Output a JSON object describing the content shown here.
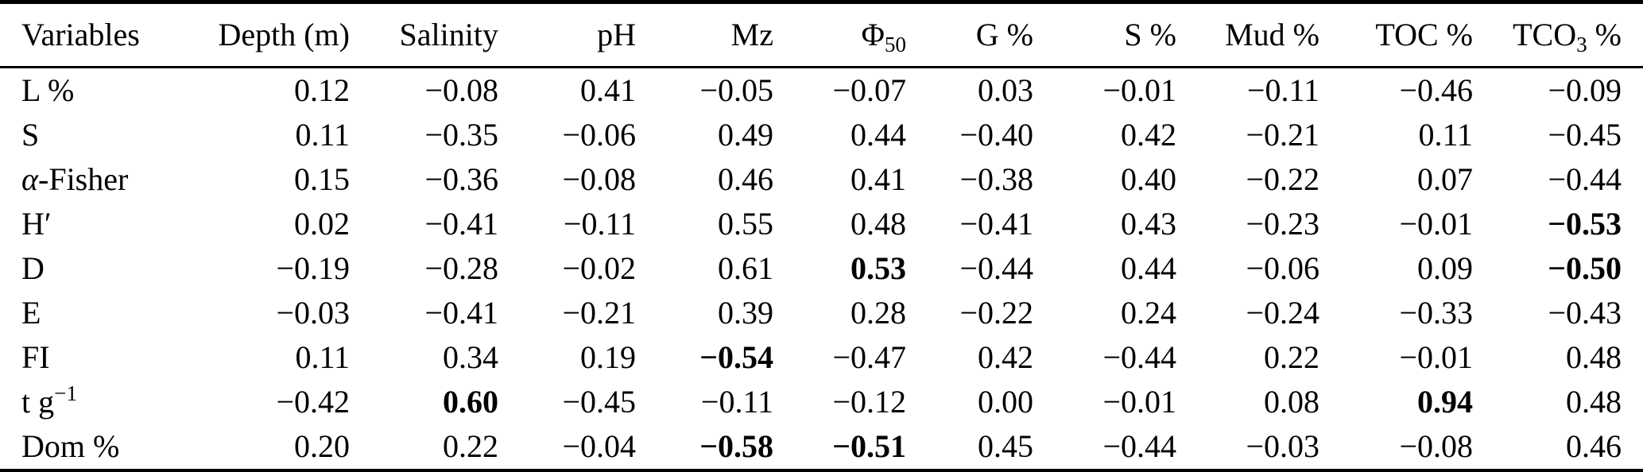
{
  "colors": {
    "background": "#ffffff",
    "text": "#000000",
    "rule": "#000000"
  },
  "table": {
    "headers": [
      {
        "parts": [
          {
            "t": "Variables"
          }
        ]
      },
      {
        "parts": [
          {
            "t": "Depth (m)"
          }
        ]
      },
      {
        "parts": [
          {
            "t": "Salinity"
          }
        ]
      },
      {
        "parts": [
          {
            "t": "pH"
          }
        ]
      },
      {
        "parts": [
          {
            "t": "Mz"
          }
        ]
      },
      {
        "parts": [
          {
            "t": "Φ"
          },
          {
            "t": "50",
            "s": "sub"
          }
        ]
      },
      {
        "parts": [
          {
            "t": "G %"
          }
        ]
      },
      {
        "parts": [
          {
            "t": "S %"
          }
        ]
      },
      {
        "parts": [
          {
            "t": "Mud %"
          }
        ]
      },
      {
        "parts": [
          {
            "t": "TOC %"
          }
        ]
      },
      {
        "parts": [
          {
            "t": "TCO"
          },
          {
            "t": "3",
            "s": "sub"
          },
          {
            "t": " %"
          }
        ]
      }
    ],
    "rows": [
      {
        "label_parts": [
          {
            "t": "L %"
          }
        ],
        "values": [
          "0.12",
          "−0.08",
          "0.41",
          "−0.05",
          "−0.07",
          "0.03",
          "−0.01",
          "−0.11",
          "−0.46",
          "−0.09"
        ],
        "bold_cols": []
      },
      {
        "label_parts": [
          {
            "t": "S"
          }
        ],
        "values": [
          "0.11",
          "−0.35",
          "−0.06",
          "0.49",
          "0.44",
          "−0.40",
          "0.42",
          "−0.21",
          "0.11",
          "−0.45"
        ],
        "bold_cols": []
      },
      {
        "label_parts": [
          {
            "t": "α",
            "s": "italic"
          },
          {
            "t": "-Fisher"
          }
        ],
        "values": [
          "0.15",
          "−0.36",
          "−0.08",
          "0.46",
          "0.41",
          "−0.38",
          "0.40",
          "−0.22",
          "0.07",
          "−0.44"
        ],
        "bold_cols": []
      },
      {
        "label_parts": [
          {
            "t": "H′"
          }
        ],
        "values": [
          "0.02",
          "−0.41",
          "−0.11",
          "0.55",
          "0.48",
          "−0.41",
          "0.43",
          "−0.23",
          "−0.01",
          "−0.53"
        ],
        "bold_cols": [
          9
        ]
      },
      {
        "label_parts": [
          {
            "t": "D"
          }
        ],
        "values": [
          "−0.19",
          "−0.28",
          "−0.02",
          "0.61",
          "0.53",
          "−0.44",
          "0.44",
          "−0.06",
          "0.09",
          "−0.50"
        ],
        "bold_cols": [
          4,
          9
        ]
      },
      {
        "label_parts": [
          {
            "t": "E"
          }
        ],
        "values": [
          "−0.03",
          "−0.41",
          "−0.21",
          "0.39",
          "0.28",
          "−0.22",
          "0.24",
          "−0.24",
          "−0.33",
          "−0.43"
        ],
        "bold_cols": []
      },
      {
        "label_parts": [
          {
            "t": "FI"
          }
        ],
        "values": [
          "0.11",
          "0.34",
          "0.19",
          "−0.54",
          "−0.47",
          "0.42",
          "−0.44",
          "0.22",
          "−0.01",
          "0.48"
        ],
        "bold_cols": [
          3
        ]
      },
      {
        "label_parts": [
          {
            "t": "t g"
          },
          {
            "t": "−1",
            "s": "sup"
          }
        ],
        "values": [
          "−0.42",
          "0.60",
          "−0.45",
          "−0.11",
          "−0.12",
          "0.00",
          "−0.01",
          "0.08",
          "0.94",
          "0.48"
        ],
        "bold_cols": [
          1,
          8
        ]
      },
      {
        "label_parts": [
          {
            "t": "Dom %"
          }
        ],
        "values": [
          "0.20",
          "0.22",
          "−0.04",
          "−0.58",
          "−0.51",
          "0.45",
          "−0.44",
          "−0.03",
          "−0.08",
          "0.46"
        ],
        "bold_cols": [
          3,
          4
        ]
      }
    ]
  }
}
